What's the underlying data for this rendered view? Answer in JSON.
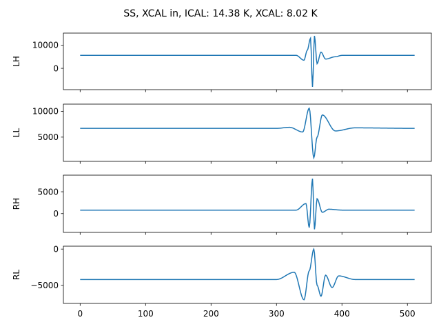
{
  "chart_data": {
    "type": "line",
    "title": "SS, XCAL in, ICAL: 14.38 K, XCAL: 8.02 K",
    "x_ticks": [
      0,
      100,
      200,
      300,
      400,
      500
    ],
    "x_range": [
      -25.6,
      536.6
    ],
    "n_points": 512,
    "line_color": "#1f77b4",
    "grid": false,
    "panels": [
      {
        "ylabel": "LH",
        "baseline": 5600,
        "y_ticks": [
          0,
          10000
        ],
        "y_range": [
          -9200,
          15200
        ],
        "key_points": [
          [
            330,
            5600
          ],
          [
            342,
            3500
          ],
          [
            347,
            7800
          ],
          [
            352,
            13000
          ],
          [
            355,
            -8000
          ],
          [
            358,
            14000
          ],
          [
            362,
            2000
          ],
          [
            368,
            7000
          ],
          [
            375,
            4000
          ],
          [
            390,
            5000
          ],
          [
            400,
            5600
          ],
          [
            511,
            5600
          ]
        ]
      },
      {
        "ylabel": "LL",
        "baseline": 6700,
        "y_ticks": [
          5000,
          10000
        ],
        "y_range": [
          300,
          11400
        ],
        "key_points": [
          [
            300,
            6700
          ],
          [
            320,
            6900
          ],
          [
            340,
            6000
          ],
          [
            350,
            10600
          ],
          [
            357,
            1000
          ],
          [
            362,
            5000
          ],
          [
            370,
            9300
          ],
          [
            390,
            6200
          ],
          [
            420,
            6800
          ],
          [
            511,
            6700
          ]
        ]
      },
      {
        "ylabel": "RH",
        "baseline": 800,
        "y_ticks": [
          0,
          5000
        ],
        "y_range": [
          -4300,
          8800
        ],
        "key_points": [
          [
            330,
            800
          ],
          [
            345,
            2300
          ],
          [
            350,
            -3200
          ],
          [
            355,
            8000
          ],
          [
            358,
            -3600
          ],
          [
            362,
            3400
          ],
          [
            370,
            300
          ],
          [
            380,
            1000
          ],
          [
            400,
            800
          ],
          [
            511,
            800
          ]
        ]
      },
      {
        "ylabel": "RL",
        "baseline": -4200,
        "y_ticks": [
          -5000,
          0
        ],
        "y_range": [
          -7500,
          400
        ],
        "key_points": [
          [
            300,
            -4200
          ],
          [
            327,
            -3200
          ],
          [
            342,
            -7000
          ],
          [
            350,
            -3000
          ],
          [
            357,
            0
          ],
          [
            362,
            -5000
          ],
          [
            368,
            -6500
          ],
          [
            375,
            -3600
          ],
          [
            385,
            -5300
          ],
          [
            395,
            -3700
          ],
          [
            420,
            -4200
          ],
          [
            511,
            -4200
          ]
        ]
      }
    ]
  }
}
